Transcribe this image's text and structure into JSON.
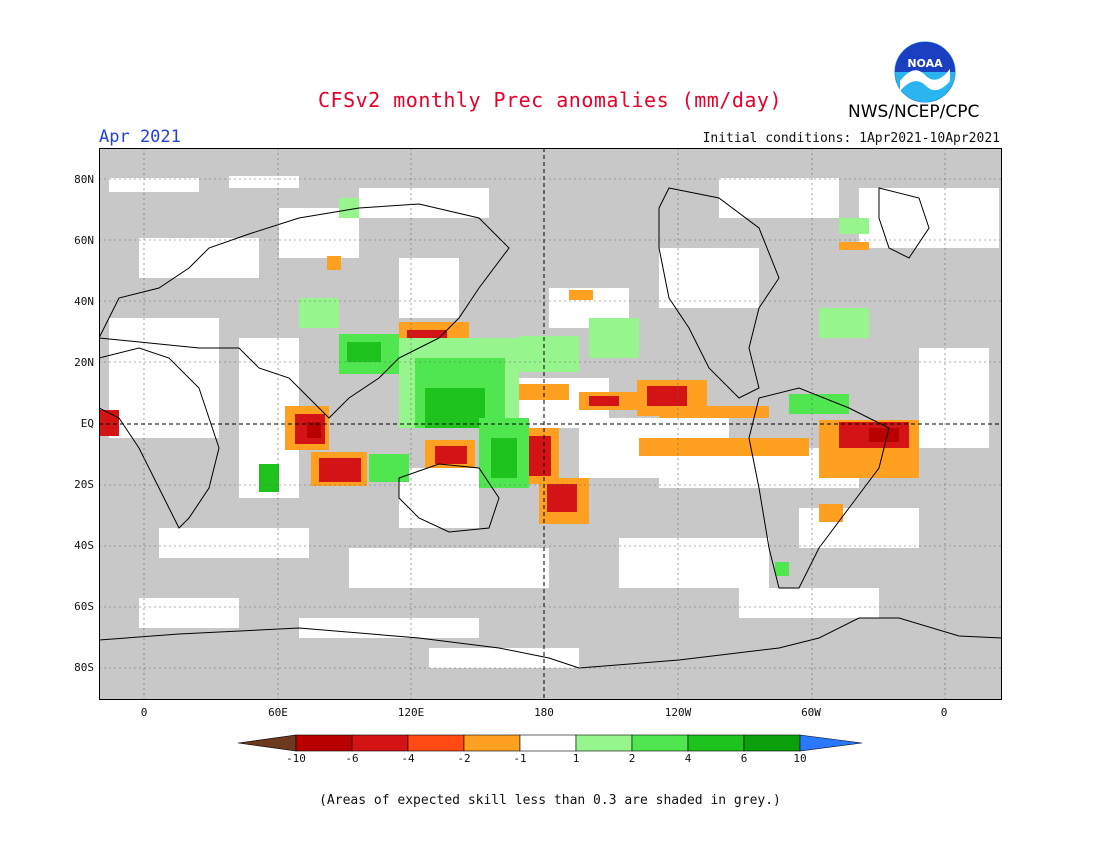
{
  "header": {
    "title": "CFSv2 monthly Prec anomalies (mm/day)",
    "month": "Apr 2021",
    "initial_conditions": "Initial conditions: 1Apr2021-10Apr2021",
    "agency": "NWS/NCEP/CPC",
    "logo_text": "NOAA"
  },
  "map": {
    "lat_labels": [
      "80N",
      "60N",
      "40N",
      "20N",
      "EQ",
      "20S",
      "40S",
      "60S",
      "80S"
    ],
    "lon_labels": [
      "0",
      "60E",
      "120E",
      "180",
      "120W",
      "60W",
      "0"
    ],
    "background_color": "#c8c8c8",
    "no_signal_color": "#ffffff"
  },
  "colorbar": {
    "labels": [
      "-10",
      "-6",
      "-4",
      "-2",
      "-1",
      "1",
      "2",
      "4",
      "6",
      "10"
    ],
    "colors": [
      "#6b3a1e",
      "#b80000",
      "#d41414",
      "#ff4a14",
      "#ffa020",
      "#ffffff",
      "#96f58c",
      "#50e650",
      "#1ec31e",
      "#0ca00c",
      "#2a78ff"
    ]
  },
  "footnote": "(Areas of expected skill less than 0.3 are shaded in grey.)"
}
